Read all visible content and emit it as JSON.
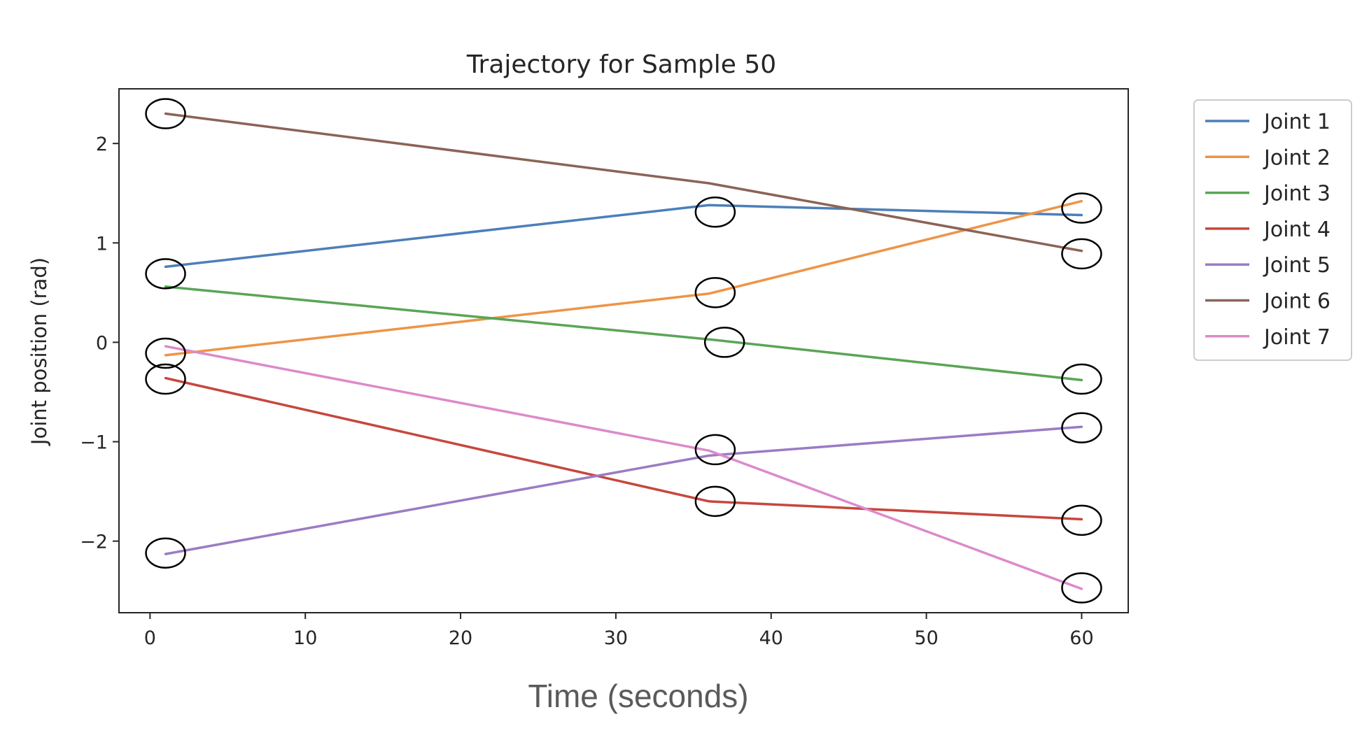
{
  "chart_data": {
    "type": "line",
    "title": "Trajectory for Sample 50",
    "xlabel": "Time (seconds)",
    "ylabel": "Joint position (rad)",
    "x": [
      1,
      36,
      60
    ],
    "xlim": [
      -2,
      63
    ],
    "ylim": [
      -2.72,
      2.55
    ],
    "xticks": [
      0,
      10,
      20,
      30,
      40,
      50,
      60
    ],
    "yticks": [
      -2,
      -1,
      0,
      1,
      2
    ],
    "grid": false,
    "legend_position": "outside-right",
    "series": [
      {
        "name": "Joint 1",
        "color": "#4c7fb8",
        "values": [
          0.76,
          1.38,
          1.28
        ]
      },
      {
        "name": "Joint 2",
        "color": "#ee9447",
        "values": [
          -0.13,
          0.49,
          1.42
        ]
      },
      {
        "name": "Joint 3",
        "color": "#5aa556",
        "values": [
          0.56,
          0.03,
          -0.38
        ]
      },
      {
        "name": "Joint 4",
        "color": "#c6473e",
        "values": [
          -0.36,
          -1.6,
          -1.78
        ]
      },
      {
        "name": "Joint 5",
        "color": "#9a7cc4",
        "values": [
          -2.13,
          -1.14,
          -0.85
        ]
      },
      {
        "name": "Joint 6",
        "color": "#8b6357",
        "values": [
          2.3,
          1.6,
          0.92
        ]
      },
      {
        "name": "Joint 7",
        "color": "#dc8acb",
        "values": [
          -0.04,
          -1.09,
          -2.48
        ]
      }
    ],
    "annotations": {
      "type": "circle-markers",
      "stroke": "#000000",
      "points": [
        {
          "x": 1,
          "y": 2.3
        },
        {
          "x": 1,
          "y": 0.69
        },
        {
          "x": 1,
          "y": -0.11
        },
        {
          "x": 1,
          "y": -0.37
        },
        {
          "x": 1,
          "y": -2.12
        },
        {
          "x": 36.4,
          "y": 1.31
        },
        {
          "x": 36.4,
          "y": 0.5
        },
        {
          "x": 37,
          "y": 0.0
        },
        {
          "x": 36.4,
          "y": -1.08
        },
        {
          "x": 36.4,
          "y": -1.6
        },
        {
          "x": 60,
          "y": 1.35
        },
        {
          "x": 60,
          "y": 0.89
        },
        {
          "x": 60,
          "y": -0.37
        },
        {
          "x": 60,
          "y": -0.86
        },
        {
          "x": 60,
          "y": -1.79
        },
        {
          "x": 60,
          "y": -2.47
        }
      ]
    }
  }
}
